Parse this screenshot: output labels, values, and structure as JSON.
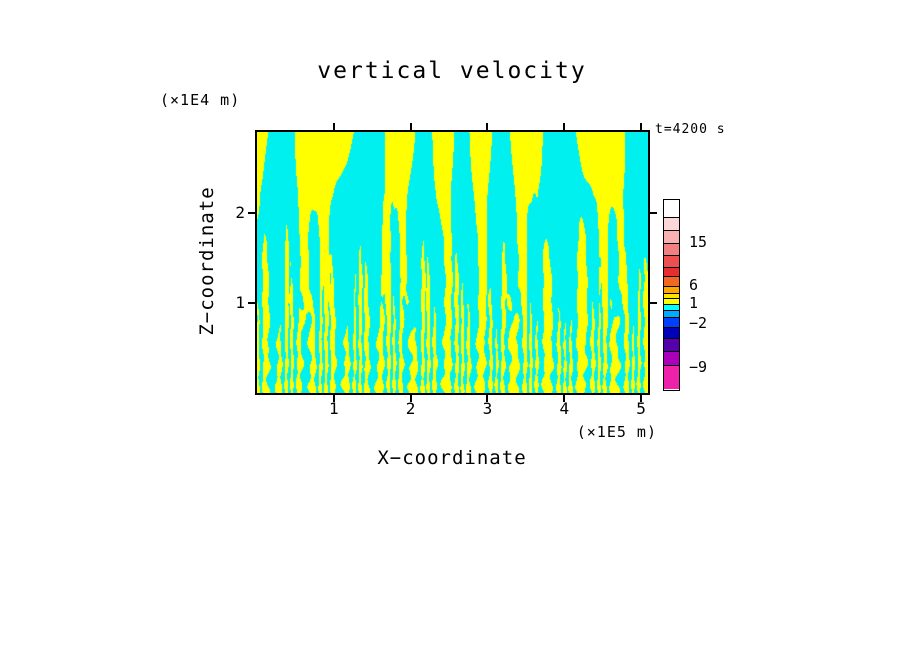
{
  "chart_data": {
    "type": "heatmap",
    "title": "vertical velocity",
    "time_annotation": "t=4200 s",
    "xlabel": "X−coordinate",
    "x_units": "(×1E5 m)",
    "ylabel": "Z−coordinate",
    "y_units": "(×1E4 m)",
    "xlim": [
      0,
      5.09
    ],
    "ylim": [
      0,
      2.9
    ],
    "x_ticks": [
      1,
      2,
      3,
      4,
      5
    ],
    "y_ticks": [
      1,
      2
    ],
    "grid": false,
    "legend_position": "none",
    "field": {
      "description": "Filled two-level contour field of vertical velocity in a convecting layer: yellow = upward motion, cyan = downward motion. Many fine alternating plumes near the bottom boundary (with thin horizontal banded layers) merge upward into fewer narrow rising columns and finally into broad convection cells filling the upper part of the domain.",
      "positive_color": "#ffff00",
      "negative_color": "#00f0f0",
      "n_large_cells": 7.3,
      "n_mid_plumes": 16,
      "n_fine_streaks": 46,
      "n_bottom_bands": 12
    },
    "colorbar": {
      "position": "right",
      "tick_labels": [
        {
          "text": "15",
          "pos": 0.225
        },
        {
          "text": "6",
          "pos": 0.455
        },
        {
          "text": "1",
          "pos": 0.545
        },
        {
          "text": "−2",
          "pos": 0.655
        },
        {
          "text": "−9",
          "pos": 0.885
        }
      ],
      "segments": [
        {
          "color": "#ffffff",
          "h": 0.095
        },
        {
          "color": "#fcd7d7",
          "h": 0.07
        },
        {
          "color": "#f9b0b0",
          "h": 0.07
        },
        {
          "color": "#f28080",
          "h": 0.065
        },
        {
          "color": "#ec5050",
          "h": 0.06
        },
        {
          "color": "#e62e2e",
          "h": 0.05
        },
        {
          "color": "#f26722",
          "h": 0.05
        },
        {
          "color": "#fca800",
          "h": 0.035
        },
        {
          "color": "#ffe200",
          "h": 0.025
        },
        {
          "color": "#ffff00",
          "h": 0.025
        },
        {
          "color": "#00ffff",
          "h": 0.03
        },
        {
          "color": "#00aaff",
          "h": 0.035
        },
        {
          "color": "#0040ff",
          "h": 0.05
        },
        {
          "color": "#0000bb",
          "h": 0.06
        },
        {
          "color": "#5500aa",
          "h": 0.07
        },
        {
          "color": "#aa00bb",
          "h": 0.07
        },
        {
          "color": "#ee22aa",
          "h": 0.135
        }
      ]
    }
  }
}
